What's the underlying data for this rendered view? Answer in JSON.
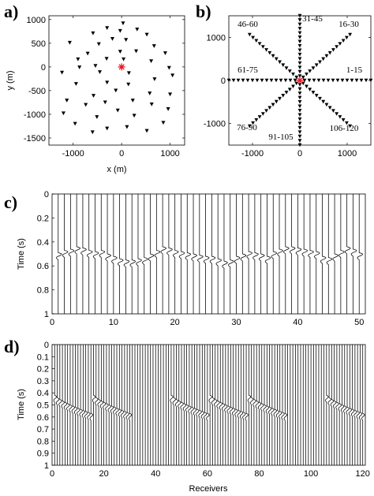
{
  "chart_data": [
    {
      "id": "a",
      "panel_label": "a)",
      "type": "scatter",
      "xlabel": "x (m)",
      "ylabel": "y (m)",
      "xlim": [
        -1500,
        1300
      ],
      "ylim": [
        -1650,
        1080
      ],
      "xticks": [
        -1000,
        0,
        1000
      ],
      "yticks": [
        1000,
        500,
        0,
        -500,
        -1000,
        -1500
      ],
      "grid": false,
      "source": {
        "x": 0,
        "y": 0,
        "marker": "asterisk",
        "color": "#e8141c"
      },
      "receivers": [
        {
          "x": 30,
          "y": 920
        },
        {
          "x": -300,
          "y": 820
        },
        {
          "x": -30,
          "y": 760
        },
        {
          "x": 320,
          "y": 790
        },
        {
          "x": -590,
          "y": 710
        },
        {
          "x": 520,
          "y": 680
        },
        {
          "x": -190,
          "y": 590
        },
        {
          "x": 90,
          "y": 570
        },
        {
          "x": -1070,
          "y": 510
        },
        {
          "x": -470,
          "y": 480
        },
        {
          "x": 670,
          "y": 440
        },
        {
          "x": -30,
          "y": 320
        },
        {
          "x": 300,
          "y": 330
        },
        {
          "x": -700,
          "y": 280
        },
        {
          "x": 900,
          "y": 290
        },
        {
          "x": -900,
          "y": 160
        },
        {
          "x": -310,
          "y": 170
        },
        {
          "x": 40,
          "y": 160
        },
        {
          "x": 610,
          "y": 120
        },
        {
          "x": -540,
          "y": 20
        },
        {
          "x": -870,
          "y": -10
        },
        {
          "x": 980,
          "y": -20
        },
        {
          "x": 150,
          "y": -130
        },
        {
          "x": -450,
          "y": -110
        },
        {
          "x": 1050,
          "y": -180
        },
        {
          "x": -1230,
          "y": -120
        },
        {
          "x": 680,
          "y": -260
        },
        {
          "x": -300,
          "y": -330
        },
        {
          "x": -940,
          "y": -360
        },
        {
          "x": 140,
          "y": -370
        },
        {
          "x": -120,
          "y": -500
        },
        {
          "x": 580,
          "y": -560
        },
        {
          "x": -580,
          "y": -610
        },
        {
          "x": 1000,
          "y": -580
        },
        {
          "x": 230,
          "y": -710
        },
        {
          "x": -1130,
          "y": -710
        },
        {
          "x": -340,
          "y": -750
        },
        {
          "x": 620,
          "y": -790
        },
        {
          "x": -740,
          "y": -800
        },
        {
          "x": 960,
          "y": -890
        },
        {
          "x": -80,
          "y": -920
        },
        {
          "x": 260,
          "y": -1030
        },
        {
          "x": -1200,
          "y": -980
        },
        {
          "x": -510,
          "y": -1060
        },
        {
          "x": 860,
          "y": -1180
        },
        {
          "x": -960,
          "y": -1200
        },
        {
          "x": 110,
          "y": -1270
        },
        {
          "x": -300,
          "y": -1300
        },
        {
          "x": 520,
          "y": -1350
        },
        {
          "x": -600,
          "y": -1380
        }
      ]
    },
    {
      "id": "b",
      "panel_label": "b)",
      "type": "scatter",
      "xlim": [
        -1500,
        1500
      ],
      "ylim": [
        -1500,
        1500
      ],
      "xticks": [
        -1000,
        0,
        1000
      ],
      "yticks": [
        1000,
        0,
        -1000
      ],
      "grid": false,
      "source": {
        "x": 0,
        "y": 0,
        "marker": "asterisk",
        "color": "#e8141c"
      },
      "arms_deg": [
        0,
        45,
        90,
        135,
        180,
        225,
        270,
        315
      ],
      "receivers_per_arm": 15,
      "arm_length": 1500,
      "group_labels": [
        "1-15",
        "16-30",
        "31-45",
        "46-60",
        "61-75",
        "76-90",
        "91-105",
        "106-120"
      ]
    },
    {
      "id": "c",
      "panel_label": "c)",
      "type": "line",
      "ylabel": "Time (s)",
      "xlim": [
        0,
        51
      ],
      "ylim": [
        0,
        1
      ],
      "yreversed": true,
      "xticks": [
        0,
        10,
        20,
        30,
        40,
        50
      ],
      "yticks": [
        0,
        0.2,
        0.4,
        0.6,
        0.8,
        1
      ],
      "traces": 50,
      "first_arrival_s": [
        0.49,
        0.47,
        0.46,
        0.44,
        0.45,
        0.47,
        0.48,
        0.47,
        0.5,
        0.52,
        0.54,
        0.55,
        0.55,
        0.54,
        0.53,
        0.5,
        0.47,
        0.44,
        0.45,
        0.47,
        0.48,
        0.49,
        0.5,
        0.51,
        0.52,
        0.52,
        0.54,
        0.56,
        0.55,
        0.52,
        0.5,
        0.48,
        0.49,
        0.5,
        0.52,
        0.48,
        0.46,
        0.44,
        0.44,
        0.45,
        0.46,
        0.47,
        0.48,
        0.52,
        0.53,
        0.5,
        0.47,
        0.44,
        0.46,
        0.49
      ]
    },
    {
      "id": "d",
      "panel_label": "d)",
      "type": "line",
      "ylabel": "Time (s)",
      "xlabel": "Receivers",
      "xlim": [
        0,
        121
      ],
      "ylim": [
        0,
        1
      ],
      "yreversed": true,
      "xticks": [
        0,
        20,
        40,
        60,
        80,
        100,
        120
      ],
      "yticks": [
        0,
        0.1,
        0.2,
        0.3,
        0.4,
        0.5,
        0.6,
        0.7,
        0.8,
        0.9,
        1
      ],
      "traces": 120,
      "arrival_groups": [
        {
          "first": 1,
          "last": 15,
          "t_start": 0.42,
          "t_end": 0.57
        },
        {
          "first": 16,
          "last": 30,
          "t_start": 0.42,
          "t_end": 0.57
        },
        {
          "first": 46,
          "last": 60,
          "t_start": 0.42,
          "t_end": 0.57
        },
        {
          "first": 61,
          "last": 75,
          "t_start": 0.42,
          "t_end": 0.57
        },
        {
          "first": 76,
          "last": 90,
          "t_start": 0.42,
          "t_end": 0.57
        },
        {
          "first": 106,
          "last": 120,
          "t_start": 0.42,
          "t_end": 0.57
        }
      ]
    }
  ]
}
